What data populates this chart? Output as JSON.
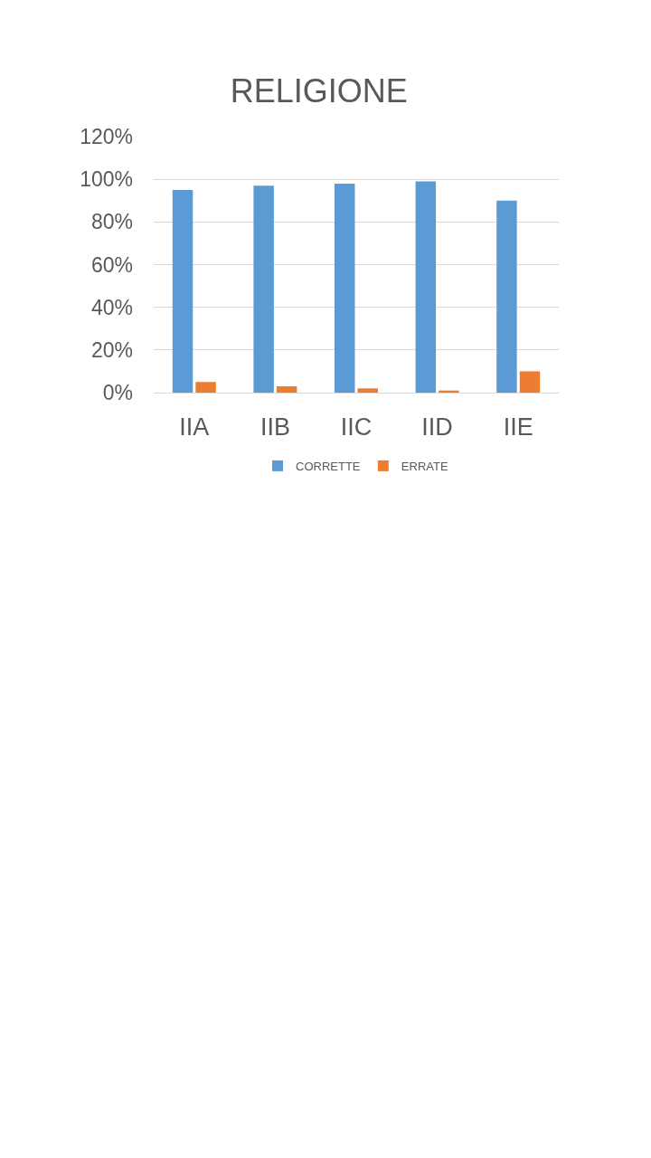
{
  "chart_data": {
    "type": "bar",
    "title": "RELIGIONE",
    "categories": [
      "IIA",
      "IIB",
      "IIC",
      "IID",
      "IIE"
    ],
    "series": [
      {
        "name": "CORRETTE",
        "color": "#5b9bd5",
        "values": [
          95,
          97,
          98,
          99,
          90
        ]
      },
      {
        "name": "ERRATE",
        "color": "#ed7d31",
        "values": [
          5,
          3,
          2,
          1,
          10
        ]
      }
    ],
    "ylim": [
      0,
      120
    ],
    "yticks": [
      {
        "value": 0,
        "label": "0%"
      },
      {
        "value": 20,
        "label": "20%"
      },
      {
        "value": 40,
        "label": "40%"
      },
      {
        "value": 60,
        "label": "60%"
      },
      {
        "value": 80,
        "label": "80%"
      },
      {
        "value": 100,
        "label": "100%"
      },
      {
        "value": 120,
        "label": "120%"
      }
    ],
    "grid": "y",
    "legend": "bottom"
  }
}
